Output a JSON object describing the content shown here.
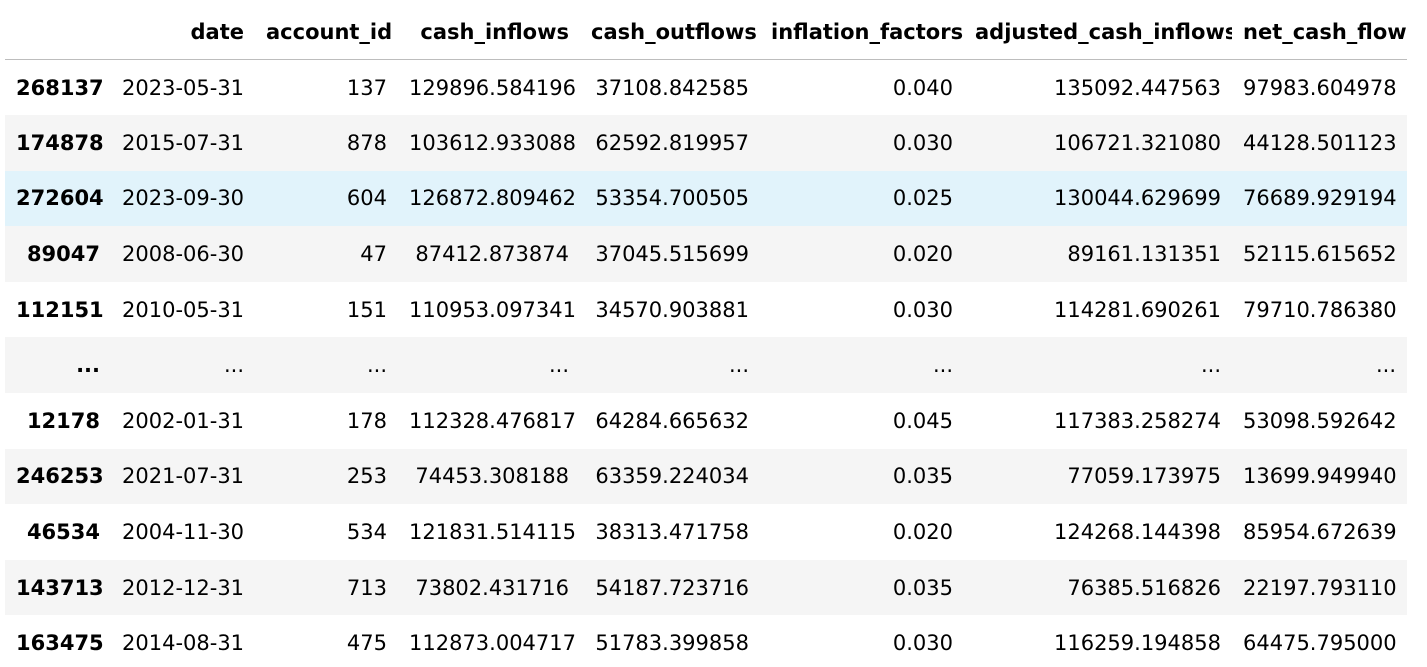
{
  "columns": [
    "",
    "date",
    "account_id",
    "cash_inflows",
    "cash_outflows",
    "inflation_factors",
    "adjusted_cash_inflows",
    "net_cash_flow"
  ],
  "rows": [
    {
      "index": "268137",
      "cells": [
        "2023-05-31",
        "137",
        "129896.584196",
        "37108.842585",
        "0.040",
        "135092.447563",
        "97983.604978"
      ]
    },
    {
      "index": "174878",
      "cells": [
        "2015-07-31",
        "878",
        "103612.933088",
        "62592.819957",
        "0.030",
        "106721.321080",
        "44128.501123"
      ]
    },
    {
      "index": "272604",
      "cells": [
        "2023-09-30",
        "604",
        "126872.809462",
        "53354.700505",
        "0.025",
        "130044.629699",
        "76689.929194"
      ]
    },
    {
      "index": "89047",
      "cells": [
        "2008-06-30",
        "47",
        "87412.873874",
        "37045.515699",
        "0.020",
        "89161.131351",
        "52115.615652"
      ]
    },
    {
      "index": "112151",
      "cells": [
        "2010-05-31",
        "151",
        "110953.097341",
        "34570.903881",
        "0.030",
        "114281.690261",
        "79710.786380"
      ]
    },
    {
      "index": "...",
      "cells": [
        "...",
        "...",
        "...",
        "...",
        "...",
        "...",
        "..."
      ]
    },
    {
      "index": "12178",
      "cells": [
        "2002-01-31",
        "178",
        "112328.476817",
        "64284.665632",
        "0.045",
        "117383.258274",
        "53098.592642"
      ]
    },
    {
      "index": "246253",
      "cells": [
        "2021-07-31",
        "253",
        "74453.308188",
        "63359.224034",
        "0.035",
        "77059.173975",
        "13699.949940"
      ]
    },
    {
      "index": "46534",
      "cells": [
        "2004-11-30",
        "534",
        "121831.514115",
        "38313.471758",
        "0.020",
        "124268.144398",
        "85954.672639"
      ]
    },
    {
      "index": "143713",
      "cells": [
        "2012-12-31",
        "713",
        "73802.431716",
        "54187.723716",
        "0.035",
        "76385.516826",
        "22197.793110"
      ]
    },
    {
      "index": "163475",
      "cells": [
        "2014-08-31",
        "475",
        "112873.004717",
        "51783.399858",
        "0.030",
        "116259.194858",
        "64475.795000"
      ]
    }
  ],
  "hovered_row": 2,
  "colors": {
    "header_border": "#bdbdbd",
    "stripe": "#f5f5f5",
    "hover": "#e1f3fb",
    "text": "#000000"
  }
}
